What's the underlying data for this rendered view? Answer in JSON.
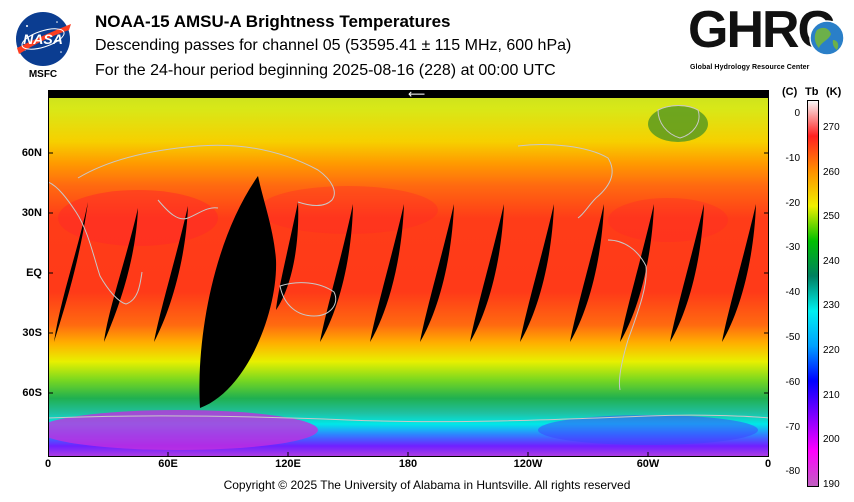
{
  "header": {
    "title": "NOAA-15 AMSU-A Brightness Temperatures",
    "subtitle": "Descending passes for channel 05 (53595.41 ± 115 MHz, 600 hPa)",
    "period": "For the 24-hour period beginning 2025-08-16 (228) at 00:00 UTC"
  },
  "logos": {
    "nasa_wordmark": "NASA",
    "nasa_label": "MSFC",
    "ghrc_wordmark": "GHRC",
    "ghrc_subtitle": "Global Hydrology Resource Center"
  },
  "map": {
    "projection": "equirectangular",
    "lat_labels": [
      "60N",
      "30N",
      "EQ",
      "30S",
      "60S"
    ],
    "lon_labels": [
      "0",
      "60E",
      "120E",
      "180",
      "120W",
      "60W",
      "0"
    ],
    "swath_gap_color": "#000000",
    "coastline_color": "#c8c8c8"
  },
  "colorbar": {
    "unit_c": "(C)",
    "label_tb": "Tb",
    "unit_k": "(K)",
    "celsius_ticks": [
      "0",
      "-10",
      "-20",
      "-30",
      "-40",
      "-50",
      "-60",
      "-70",
      "-80"
    ],
    "kelvin_ticks": [
      "270",
      "260",
      "250",
      "240",
      "230",
      "220",
      "210",
      "200",
      "190"
    ],
    "stops": [
      "#f8f8f8",
      "#ff2020",
      "#ff9000",
      "#f0f000",
      "#00c000",
      "#008060",
      "#00f0f0",
      "#00a0ff",
      "#0000ff",
      "#8000ff",
      "#ff00ff",
      "#c060c0"
    ]
  },
  "footer": {
    "copyright": "Copyright © 2025 The University of Alabama in Huntsville.  All rights reserved"
  }
}
